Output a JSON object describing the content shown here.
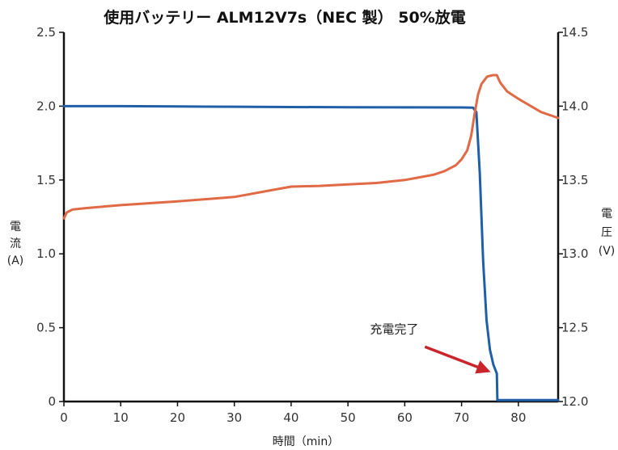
{
  "chart_data": {
    "type": "line",
    "title": "使用バッテリー ALM12V7s（NEC 製） 50%放電",
    "xlabel": "時間（min）",
    "ylabel_left": [
      "電",
      "流",
      "(A)"
    ],
    "ylabel_right": [
      "電",
      "圧",
      "(V)"
    ],
    "xlim": [
      0,
      87
    ],
    "ylim_left": [
      0,
      2.5
    ],
    "ylim_right": [
      12.0,
      14.5
    ],
    "xticks": [
      0,
      10,
      20,
      30,
      40,
      50,
      60,
      70,
      80
    ],
    "xtick_labels": [
      "0",
      "10",
      "20",
      "30",
      "40",
      "50",
      "60",
      "70",
      "80"
    ],
    "yticks_left": [
      0,
      0.5,
      1.0,
      1.5,
      2.0,
      2.5
    ],
    "ytick_labels_left": [
      "0",
      "0.5",
      "1.0",
      "1.5",
      "2.0",
      "2.5"
    ],
    "yticks_right": [
      12.0,
      12.5,
      13.0,
      13.5,
      14.0,
      14.5
    ],
    "ytick_labels_right": [
      "12.0",
      "12.5",
      "13.0",
      "13.5",
      "14.0",
      "14.5"
    ],
    "grid": false,
    "series": [
      {
        "axis": "left",
        "color": "#1f5fa8",
        "x": [
          0,
          10,
          20,
          30,
          40,
          50,
          60,
          70,
          72,
          72.6,
          73.2,
          73.8,
          74.4,
          75.0,
          75.6,
          76.2,
          76.3,
          78,
          80,
          87
        ],
        "values": [
          2.0,
          2.0,
          1.998,
          1.996,
          1.994,
          1.993,
          1.992,
          1.991,
          1.99,
          1.96,
          1.55,
          0.95,
          0.55,
          0.35,
          0.25,
          0.19,
          0.01,
          0.01,
          0.01,
          0.01
        ]
      },
      {
        "axis": "right",
        "color": "#e06a45",
        "x": [
          0,
          0.5,
          1.5,
          4,
          10,
          20,
          30,
          35,
          40,
          45,
          50,
          55,
          60,
          65,
          67,
          69,
          70,
          71,
          71.7,
          72.3,
          72.9,
          73.5,
          74.5,
          75.5,
          76.2,
          76.8,
          78,
          80,
          84,
          87
        ],
        "values": [
          13.24,
          13.28,
          13.3,
          13.31,
          13.33,
          13.355,
          13.385,
          13.42,
          13.455,
          13.46,
          13.47,
          13.48,
          13.5,
          13.535,
          13.56,
          13.6,
          13.64,
          13.7,
          13.8,
          13.95,
          14.08,
          14.15,
          14.2,
          14.21,
          14.21,
          14.16,
          14.1,
          14.05,
          13.96,
          13.92
        ]
      }
    ],
    "annotations": [
      {
        "text": "充電完了",
        "x": 75.8,
        "y": 0.19,
        "arrow": true,
        "arrow_color": "#c8262a"
      }
    ]
  }
}
